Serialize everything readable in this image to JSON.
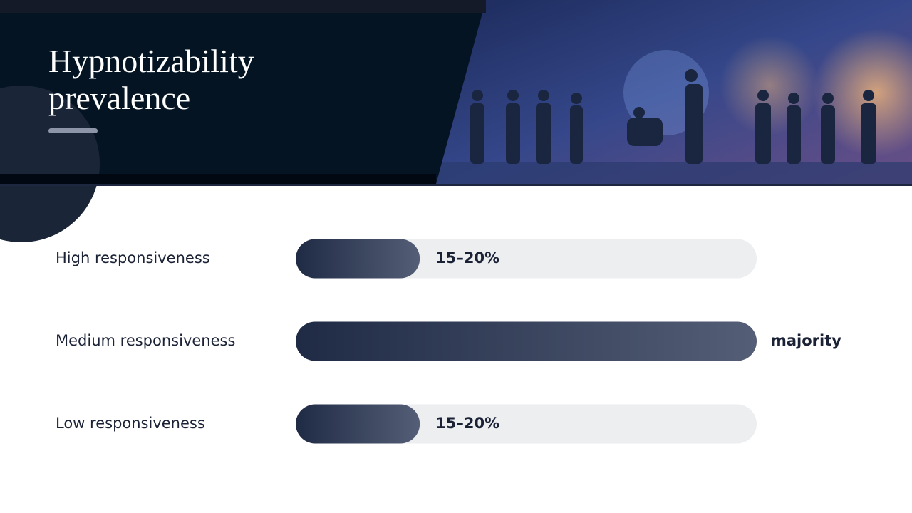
{
  "chart_data": {
    "type": "hbar",
    "title": "Hypnotizability prevalence",
    "categories": [
      "High responsiveness",
      "Medium responsiveness",
      "Low responsiveness"
    ],
    "values": [
      17.5,
      65,
      17.5
    ],
    "value_labels": [
      "15–20%",
      "majority",
      "15–20%"
    ],
    "xlim": [
      0,
      65
    ],
    "color": "#1f2a45"
  }
}
